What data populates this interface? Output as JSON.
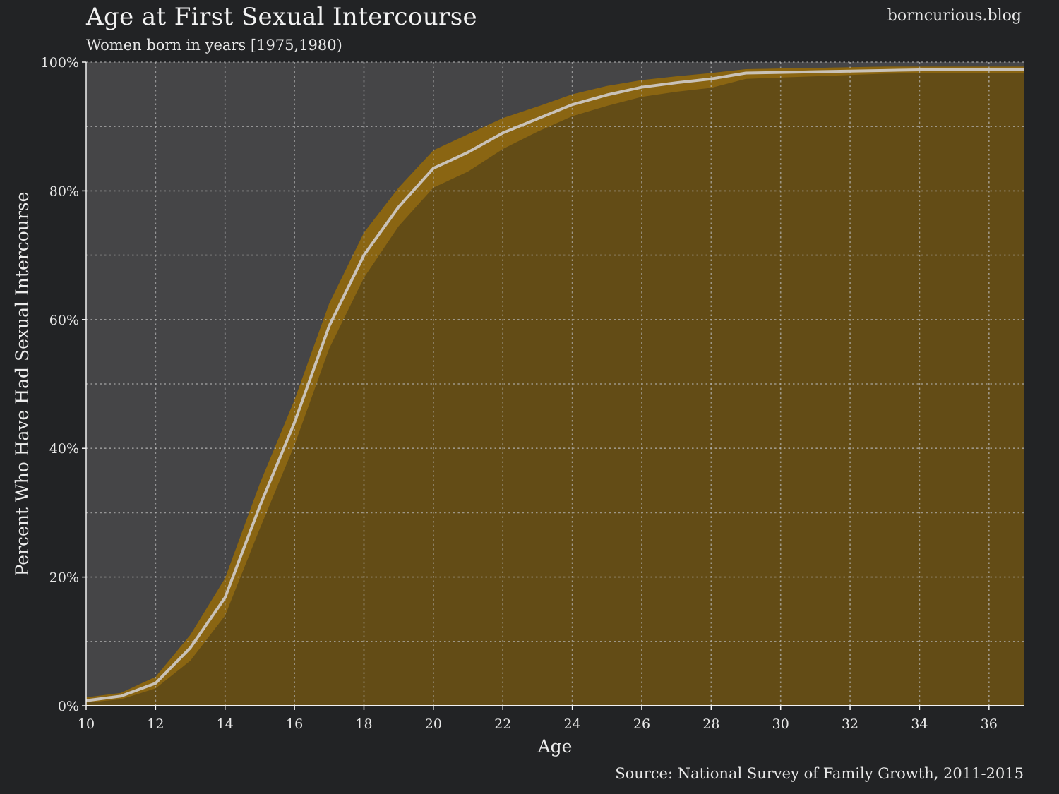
{
  "header": {
    "title": "Age at First Sexual Intercourse",
    "subtitle": "Women born in years [1975,1980)",
    "brand": "borncurious.blog"
  },
  "footer": {
    "source": "Source: National Survey of Family Growth, 2011-2015"
  },
  "colors": {
    "background": "#222325",
    "plot_background": "#454547",
    "area_fill": "#634c16",
    "band_fill": "#8a6512",
    "line": "#c9c2b8",
    "grid": "#b8b8b8"
  },
  "chart_data": {
    "type": "area",
    "title": "Age at First Sexual Intercourse",
    "subtitle": "Women born in years [1975,1980)",
    "xlabel": "Age",
    "ylabel": "Percent Who Have Had Sexual Intercourse",
    "xlim": [
      10,
      37
    ],
    "ylim": [
      0,
      100
    ],
    "x_ticks": [
      10,
      12,
      14,
      16,
      18,
      20,
      22,
      24,
      26,
      28,
      30,
      32,
      34,
      36
    ],
    "y_ticks": [
      0,
      20,
      40,
      60,
      80,
      100
    ],
    "y_tick_labels": [
      "0%",
      "20%",
      "40%",
      "60%",
      "80%",
      "100%"
    ],
    "grid": true,
    "series": [
      {
        "x": [
          10,
          11,
          12,
          13,
          14,
          15,
          16,
          17,
          18,
          19,
          20,
          21,
          22,
          23,
          24,
          25,
          26,
          27,
          28,
          29,
          30,
          31,
          32,
          33,
          34,
          35,
          36,
          37
        ],
        "values": [
          0.8,
          1.5,
          3.5,
          9.0,
          16.8,
          31.0,
          44.0,
          59.0,
          70.0,
          77.5,
          83.5,
          86.0,
          89.0,
          91.2,
          93.4,
          94.9,
          96.1,
          96.8,
          97.4,
          98.3,
          98.4,
          98.5,
          98.6,
          98.7,
          98.8,
          98.8,
          98.8,
          98.8
        ],
        "lower": [
          0.5,
          1.0,
          2.7,
          7.0,
          14.0,
          27.5,
          40.5,
          55.5,
          66.5,
          74.5,
          80.5,
          83.0,
          86.5,
          89.2,
          91.6,
          93.2,
          94.6,
          95.4,
          96.0,
          97.4,
          97.6,
          97.8,
          98.0,
          98.2,
          98.3,
          98.3,
          98.3,
          98.3
        ],
        "upper": [
          1.3,
          2.0,
          4.5,
          11.0,
          19.8,
          34.5,
          47.5,
          62.5,
          73.5,
          80.5,
          86.3,
          88.8,
          91.3,
          93.1,
          95.0,
          96.3,
          97.2,
          97.8,
          98.3,
          98.9,
          99.0,
          99.1,
          99.2,
          99.3,
          99.3,
          99.3,
          99.3,
          99.3
        ]
      }
    ]
  }
}
